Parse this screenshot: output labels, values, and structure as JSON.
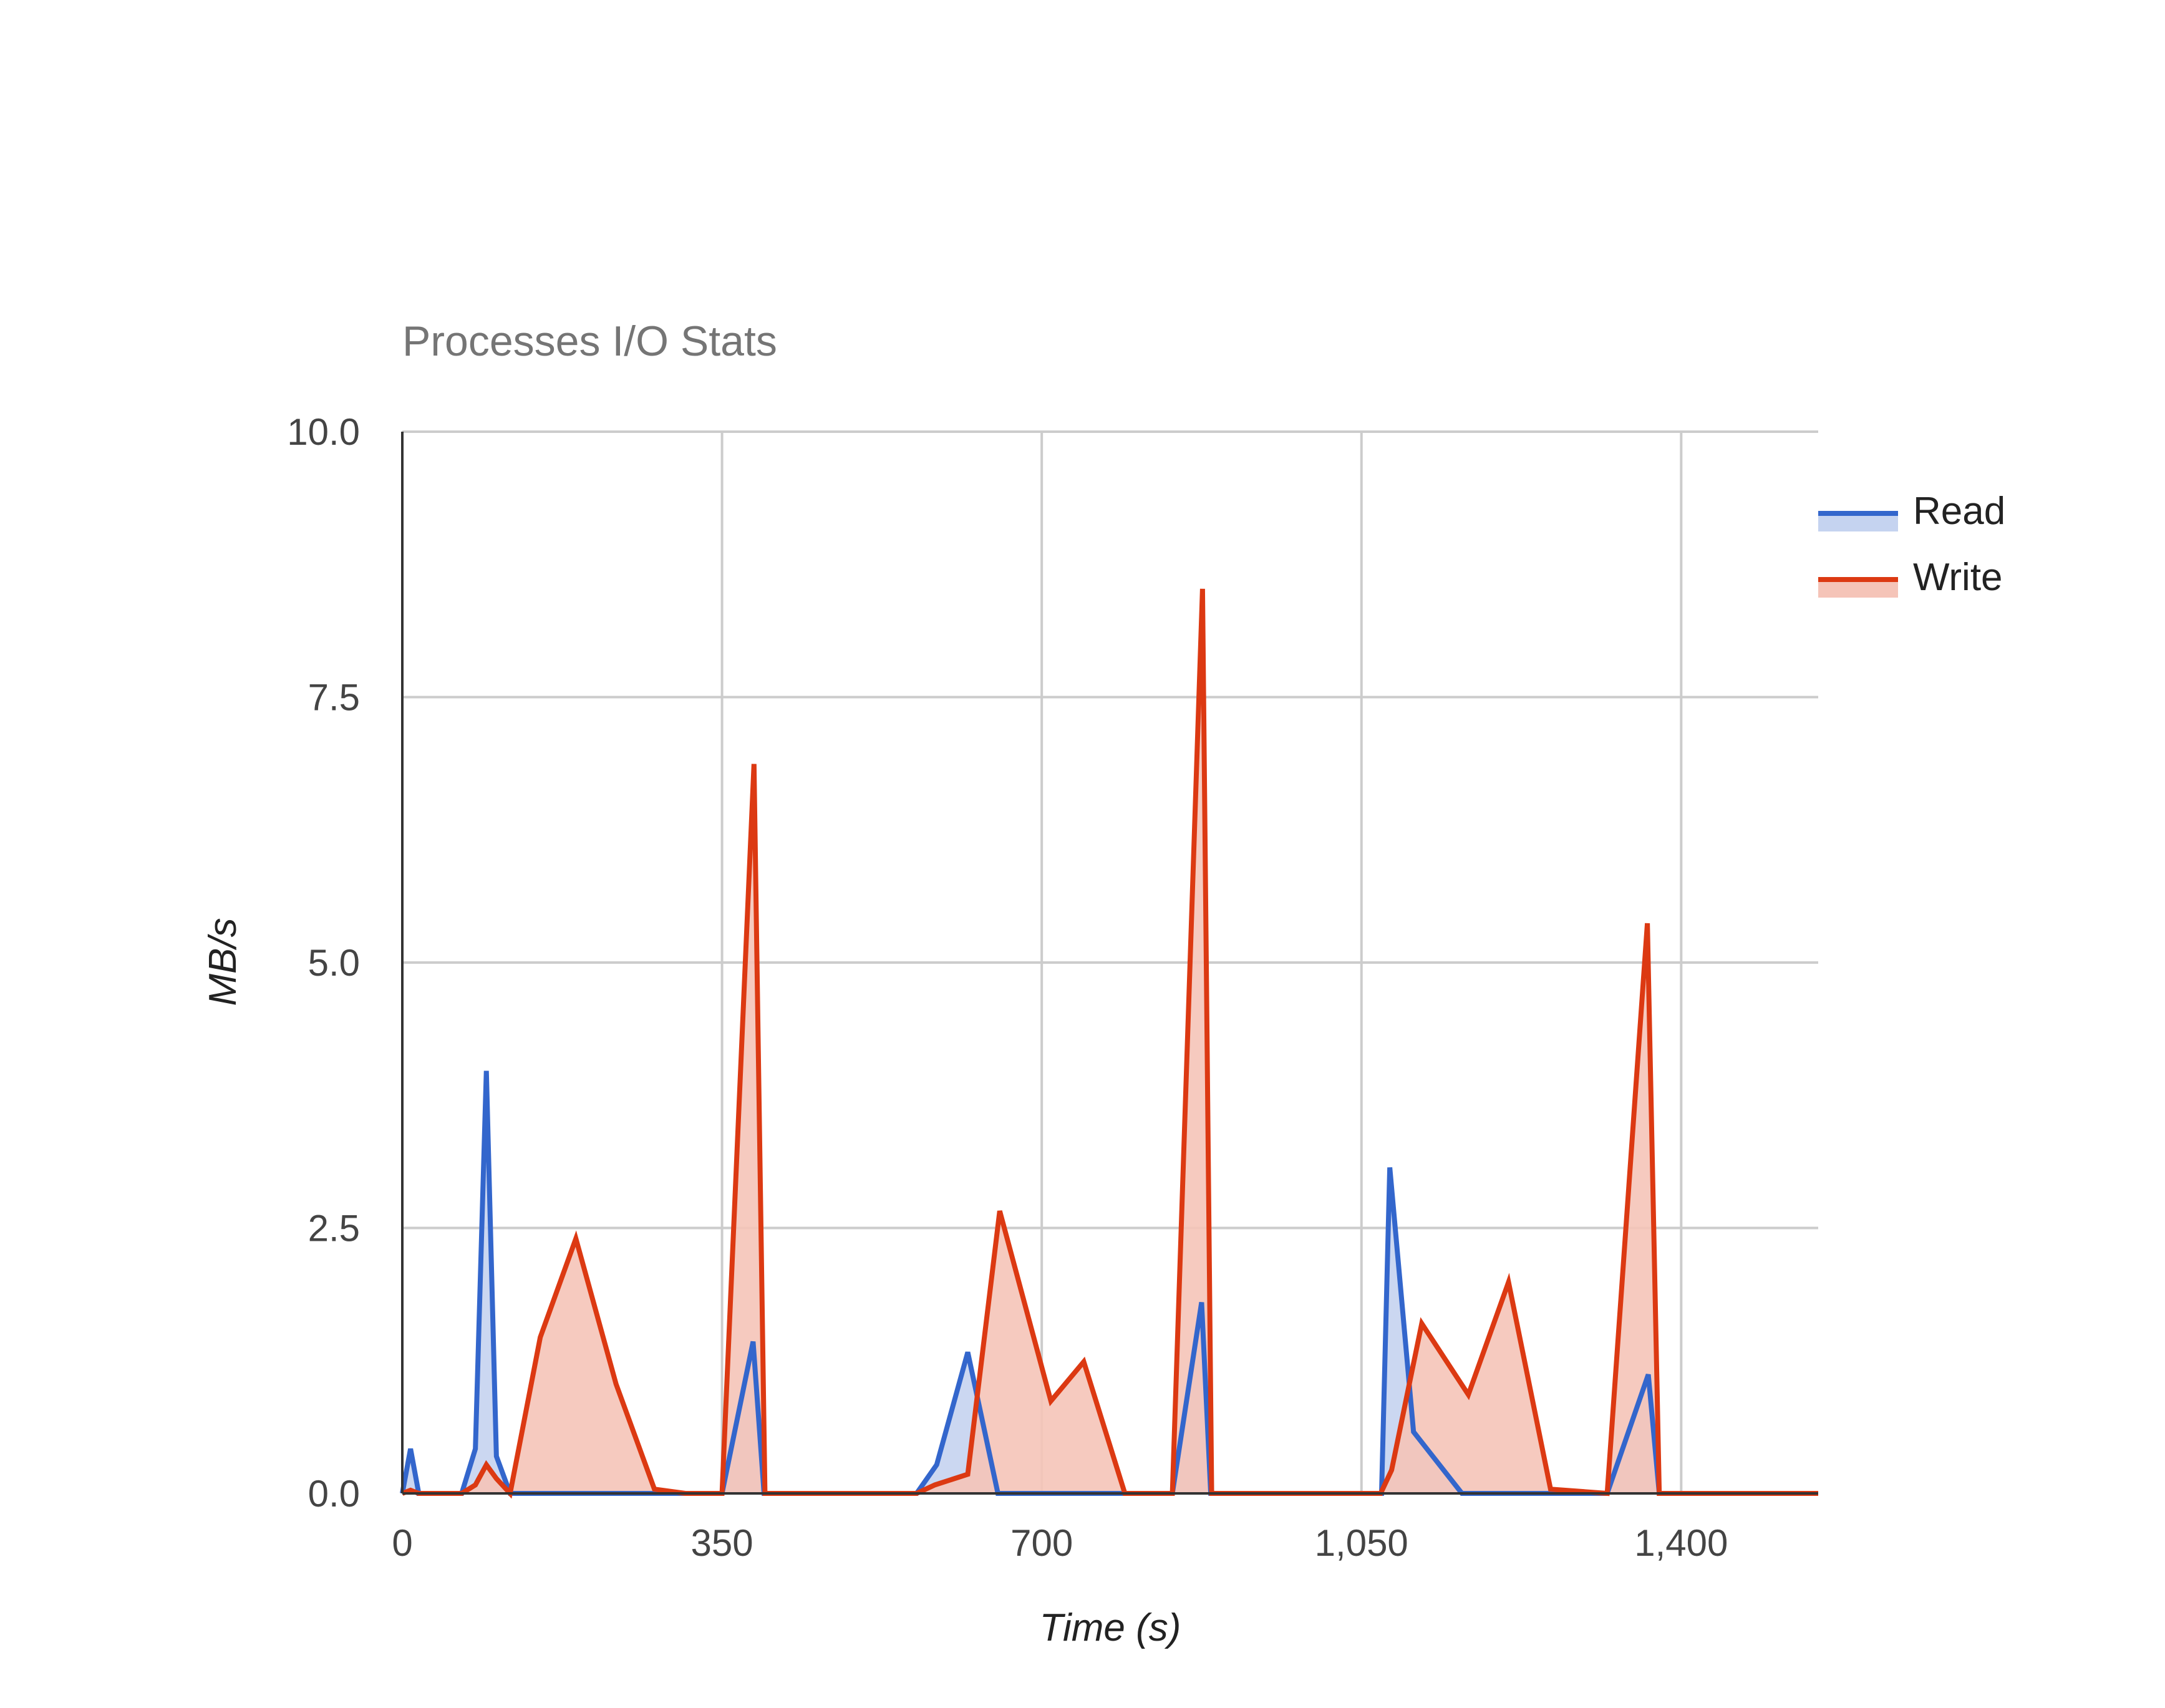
{
  "chart_data": {
    "type": "area",
    "title": "Processes I/O Stats",
    "xlabel": "Time (s)",
    "ylabel": "MB/s",
    "xlim": [
      0,
      1550
    ],
    "ylim": [
      0,
      10
    ],
    "x_ticks": [
      "0",
      "350",
      "700",
      "1,050",
      "1,400"
    ],
    "x_tick_values": [
      0,
      350,
      700,
      1050,
      1400
    ],
    "y_ticks": [
      "0.0",
      "2.5",
      "5.0",
      "7.5",
      "10.0"
    ],
    "y_tick_values": [
      0,
      2.5,
      5,
      7.5,
      10
    ],
    "grid": true,
    "legend_position": "right",
    "series": [
      {
        "name": "Read",
        "color": "#3366cc",
        "fill": "#c5d3f0",
        "points": [
          [
            0,
            0
          ],
          [
            9,
            0.42
          ],
          [
            18,
            0
          ],
          [
            65,
            0
          ],
          [
            80,
            0.42
          ],
          [
            92,
            3.98
          ],
          [
            103,
            0.35
          ],
          [
            118,
            0
          ],
          [
            350,
            0
          ],
          [
            384,
            1.43
          ],
          [
            396,
            0
          ],
          [
            563,
            0
          ],
          [
            585,
            0.27
          ],
          [
            619,
            1.33
          ],
          [
            652,
            0
          ],
          [
            790,
            0
          ],
          [
            843,
            0
          ],
          [
            875,
            1.8
          ],
          [
            885,
            0
          ],
          [
            1072,
            0
          ],
          [
            1081,
            3.07
          ],
          [
            1107,
            0.58
          ],
          [
            1160,
            0
          ],
          [
            1319,
            0
          ],
          [
            1364,
            1.12
          ],
          [
            1376,
            0
          ],
          [
            1550,
            0
          ]
        ]
      },
      {
        "name": "Write",
        "color": "#dc3912",
        "fill": "#f5c4b8",
        "points": [
          [
            0,
            0
          ],
          [
            9,
            0.03
          ],
          [
            18,
            0
          ],
          [
            65,
            0
          ],
          [
            80,
            0.08
          ],
          [
            92,
            0.27
          ],
          [
            103,
            0.14
          ],
          [
            118,
            0
          ],
          [
            151,
            1.47
          ],
          [
            190,
            2.4
          ],
          [
            234,
            1.03
          ],
          [
            276,
            0.04
          ],
          [
            310,
            0
          ],
          [
            350,
            0
          ],
          [
            385,
            6.87
          ],
          [
            397,
            0
          ],
          [
            563,
            0
          ],
          [
            583,
            0.08
          ],
          [
            619,
            0.18
          ],
          [
            654,
            2.66
          ],
          [
            710,
            0.87
          ],
          [
            746,
            1.24
          ],
          [
            791,
            0
          ],
          [
            843,
            0
          ],
          [
            876,
            8.52
          ],
          [
            886,
            0
          ],
          [
            1071,
            0
          ],
          [
            1083,
            0.22
          ],
          [
            1116,
            1.6
          ],
          [
            1167,
            0.93
          ],
          [
            1211,
            1.99
          ],
          [
            1257,
            0.04
          ],
          [
            1319,
            0
          ],
          [
            1363,
            5.37
          ],
          [
            1376,
            0
          ],
          [
            1550,
            0
          ]
        ]
      }
    ]
  }
}
